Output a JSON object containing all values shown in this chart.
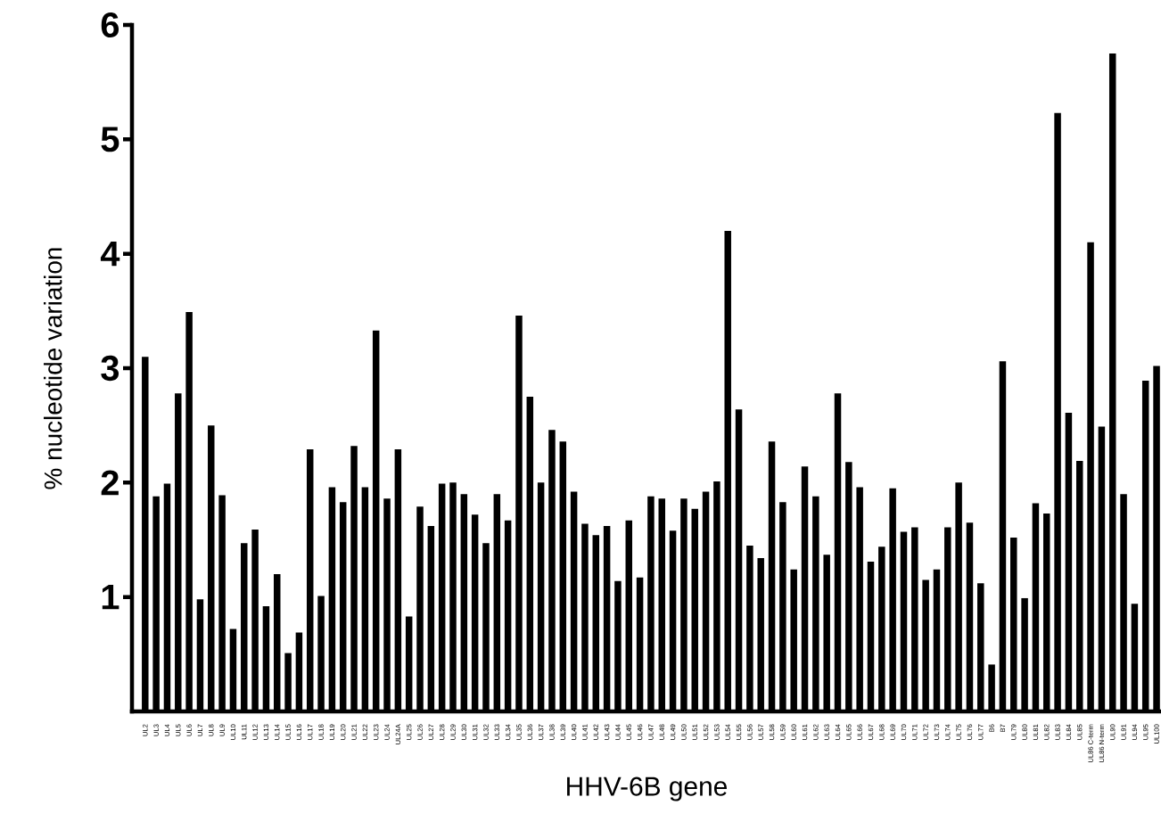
{
  "chart_data": {
    "type": "bar",
    "xlabel": "HHV-6B gene",
    "ylabel": "% nucleotide variation",
    "color": "#000000",
    "categories": [
      "UL2",
      "UL3",
      "UL4",
      "UL5",
      "UL6",
      "UL7",
      "UL8",
      "UL9",
      "UL10",
      "UL11",
      "UL12",
      "UL13",
      "UL14",
      "UL15",
      "UL16",
      "UL17",
      "UL18",
      "UL19",
      "UL20",
      "UL21",
      "UL22",
      "UL23",
      "UL24",
      "UL24A",
      "UL25",
      "UL26",
      "UL27",
      "UL28",
      "UL29",
      "UL30",
      "UL31",
      "UL32",
      "UL33",
      "UL34",
      "UL35",
      "UL36",
      "UL37",
      "UL38",
      "UL39",
      "UL40",
      "UL41",
      "UL42",
      "UL43",
      "UL44",
      "UL45",
      "UL46",
      "UL47",
      "UL48",
      "UL49",
      "UL50",
      "UL51",
      "UL52",
      "UL53",
      "UL54",
      "UL55",
      "UL56",
      "UL57",
      "UL58",
      "UL59",
      "UL60",
      "UL61",
      "UL62",
      "UL63",
      "UL64",
      "UL65",
      "UL66",
      "UL67",
      "UL68",
      "UL69",
      "UL70",
      "UL71",
      "UL72",
      "UL73",
      "UL74",
      "UL75",
      "UL76",
      "UL77",
      "B6",
      "B7",
      "UL79",
      "UL80",
      "UL81",
      "UL82",
      "UL83",
      "UL84",
      "UL85",
      "UL86 C-term",
      "UL86 N-term",
      "UL90",
      "UL91",
      "UL94",
      "UL95",
      "UL100"
    ],
    "values": [
      3.1,
      1.88,
      1.99,
      2.78,
      3.49,
      0.98,
      2.5,
      1.89,
      0.72,
      1.47,
      1.59,
      0.92,
      1.2,
      0.51,
      0.69,
      2.29,
      1.01,
      1.96,
      1.83,
      2.32,
      1.96,
      3.33,
      1.86,
      2.29,
      0.83,
      1.79,
      1.62,
      1.99,
      2.0,
      1.9,
      1.72,
      1.47,
      1.9,
      1.67,
      3.46,
      2.75,
      2.0,
      2.46,
      2.36,
      1.92,
      1.64,
      1.54,
      1.62,
      1.14,
      1.67,
      1.17,
      1.88,
      1.86,
      1.58,
      1.86,
      1.77,
      1.92,
      2.01,
      4.2,
      2.64,
      1.45,
      1.34,
      2.36,
      1.83,
      1.24,
      2.14,
      1.88,
      1.37,
      2.78,
      2.18,
      1.96,
      1.31,
      1.44,
      1.95,
      1.57,
      1.61,
      1.15,
      1.24,
      1.61,
      2.0,
      1.65,
      1.12,
      0.41,
      3.06,
      1.52,
      0.99,
      1.82,
      1.73,
      5.23,
      2.61,
      2.19,
      4.1,
      2.49,
      5.75,
      1.9,
      0.94,
      2.89,
      3.02
    ],
    "ylim": [
      0,
      6
    ],
    "yticks": [
      1,
      2,
      3,
      4,
      5,
      6
    ]
  }
}
